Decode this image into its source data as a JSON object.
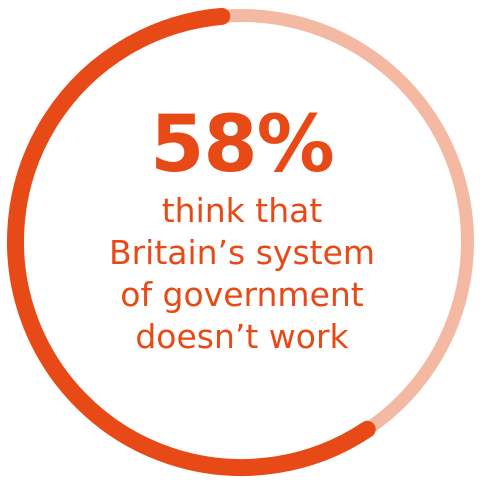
{
  "chart_data": {
    "type": "pie",
    "subtype": "donut",
    "values": [
      58,
      42
    ],
    "value_label": "58%",
    "caption_lines": [
      "think that",
      "Britain’s system",
      "of government",
      "doesn’t work"
    ],
    "colors": {
      "primary": "#e84a17",
      "remainder": "#f4b9a3",
      "text": "#e84a17"
    }
  }
}
